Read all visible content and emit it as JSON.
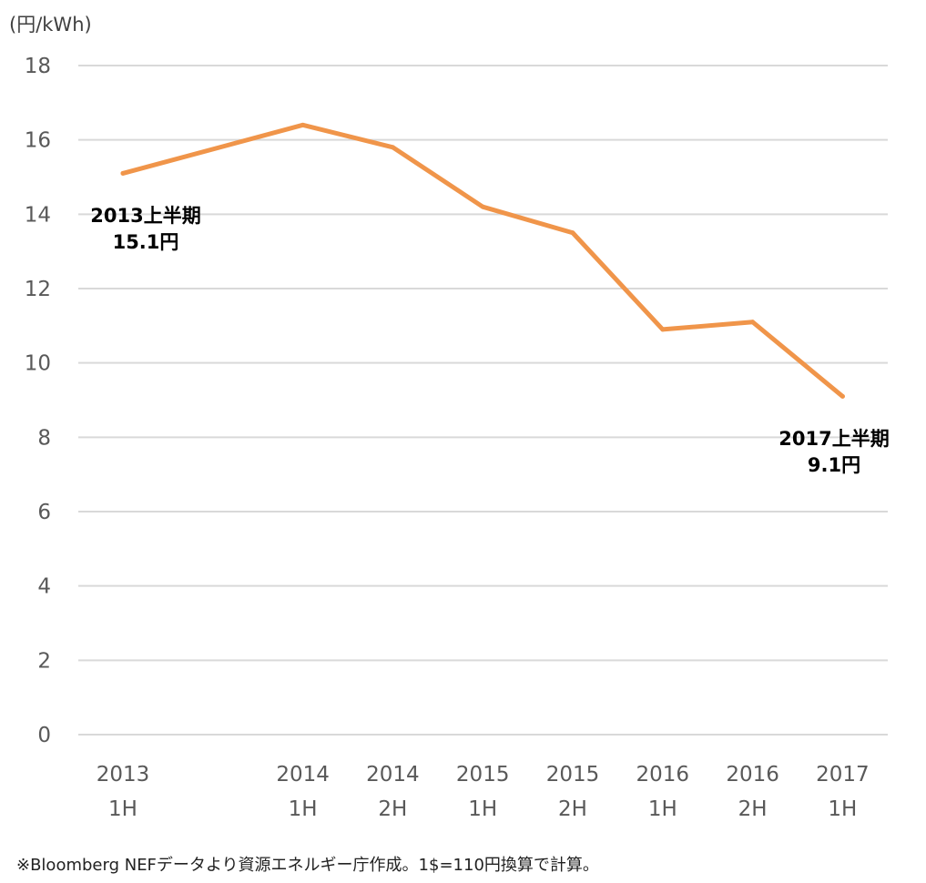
{
  "chart_data": {
    "type": "line",
    "title": "",
    "unit_label": "(円/kWh)",
    "xlabel": "",
    "ylabel": "",
    "categories": [
      [
        "2013",
        "1H"
      ],
      [
        "2014",
        "1H"
      ],
      [
        "2014",
        "2H"
      ],
      [
        "2015",
        "1H"
      ],
      [
        "2015",
        "2H"
      ],
      [
        "2016",
        "1H"
      ],
      [
        "2016",
        "2H"
      ],
      [
        "2017",
        "1H"
      ]
    ],
    "x_positions": [
      0,
      2,
      3,
      4,
      5,
      6,
      7,
      8
    ],
    "series": [
      {
        "color": "#f0954a",
        "values": [
          15.1,
          16.4,
          15.8,
          14.2,
          13.5,
          10.9,
          11.1,
          9.1
        ]
      }
    ],
    "ylim": [
      0,
      18
    ],
    "yticks": [
      0,
      2,
      4,
      6,
      8,
      10,
      12,
      14,
      16,
      18
    ],
    "grid": true,
    "annotations": [
      {
        "point_index": 0,
        "lines": [
          "2013上半期",
          "15.1円"
        ]
      },
      {
        "point_index": 7,
        "lines": [
          "2017上半期",
          "9.1円"
        ]
      }
    ]
  },
  "footnote": "※Bloomberg NEFデータより資源エネルギー庁作成。1$=110円換算で計算。"
}
